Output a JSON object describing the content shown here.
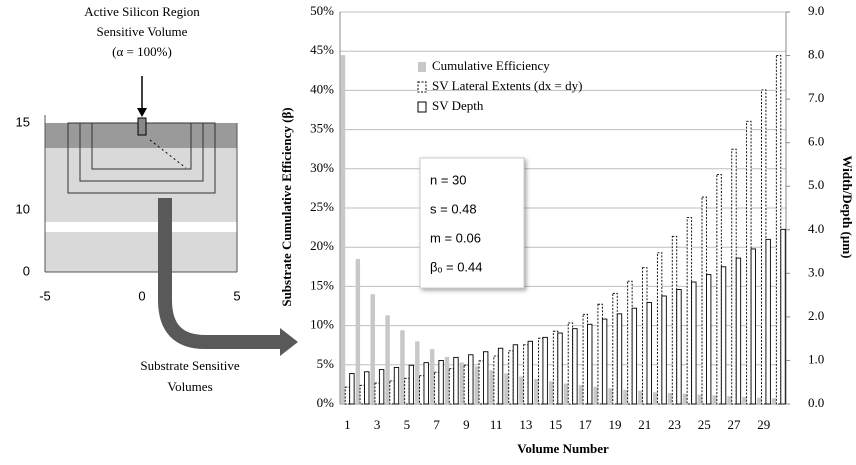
{
  "chart_data": {
    "type": "bar",
    "ylabel": "Substrate Cumulative Efficiency (β)",
    "y2label": "Width/Depth (µm)",
    "xlabel": "Volume Number",
    "categories": [
      1,
      null,
      3,
      null,
      5,
      null,
      7,
      null,
      9,
      null,
      11,
      null,
      13,
      null,
      15,
      null,
      17,
      null,
      19,
      null,
      21,
      null,
      23,
      null,
      25,
      null,
      27,
      null,
      29,
      null
    ],
    "ylim": [
      0,
      50
    ],
    "yticks": [
      {
        "value": 0,
        "label": "0%"
      },
      {
        "value": 5,
        "label": "5%"
      },
      {
        "value": 10,
        "label": "10%"
      },
      {
        "value": 15,
        "label": "15%"
      },
      {
        "value": 20,
        "label": "20%"
      },
      {
        "value": 25,
        "label": "25%"
      },
      {
        "value": 30,
        "label": "30%"
      },
      {
        "value": 35,
        "label": "35%"
      },
      {
        "value": 40,
        "label": "40%"
      },
      {
        "value": 45,
        "label": "45%"
      },
      {
        "value": 50,
        "label": "50%"
      }
    ],
    "y2lim": [
      0,
      9
    ],
    "y2ticks": [
      {
        "value": 0,
        "label": "0.0"
      },
      {
        "value": 1,
        "label": "1.0"
      },
      {
        "value": 2,
        "label": "2.0"
      },
      {
        "value": 3,
        "label": "3.0"
      },
      {
        "value": 4,
        "label": "4.0"
      },
      {
        "value": 5,
        "label": "5.0"
      },
      {
        "value": 6,
        "label": "6.0"
      },
      {
        "value": 7,
        "label": "7.0"
      },
      {
        "value": 8,
        "label": "8.0"
      },
      {
        "value": 9,
        "label": "9.0"
      }
    ],
    "grid": true,
    "series": [
      {
        "name": "Cumulative Efficiency",
        "color": "#c8c8c8",
        "line_style": "none",
        "values": [
          44.5,
          18.5,
          14,
          11.3,
          9.4,
          8,
          7,
          6,
          5.3,
          4.8,
          4.3,
          3.9,
          3.5,
          3.2,
          2.9,
          2.6,
          2.4,
          2.2,
          2,
          1.8,
          1.7,
          1.5,
          1.4,
          1.3,
          1.2,
          1.1,
          1,
          0.9,
          0.8,
          0.75
        ]
      },
      {
        "name": "SV Lateral Extents (dx = dy)",
        "color": "#ffffff",
        "line_style": "dashed",
        "axis": "y2",
        "values": [
          0.39,
          0.43,
          0.48,
          0.53,
          0.59,
          0.65,
          0.73,
          0.81,
          0.89,
          0.99,
          1.1,
          1.22,
          1.36,
          1.51,
          1.67,
          1.86,
          2.06,
          2.29,
          2.54,
          2.82,
          3.13,
          3.47,
          3.85,
          4.28,
          4.75,
          5.27,
          5.85,
          6.49,
          7.21,
          8.0
        ]
      },
      {
        "name": "SV Depth",
        "color": "#ffffff",
        "line_style": "solid",
        "axis": "y2",
        "values": [
          0.7,
          0.74,
          0.79,
          0.84,
          0.89,
          0.95,
          1.0,
          1.07,
          1.13,
          1.2,
          1.28,
          1.36,
          1.44,
          1.53,
          1.63,
          1.73,
          1.83,
          1.95,
          2.07,
          2.2,
          2.33,
          2.48,
          2.63,
          2.8,
          2.97,
          3.15,
          3.35,
          3.56,
          3.78,
          4.01
        ]
      }
    ],
    "annotations": [
      "n  = 30",
      "s  = 0.48",
      "m = 0.06",
      "βₒ = 0.44"
    ]
  },
  "diagram": {
    "top_label": [
      "Active Silicon Region",
      "Sensitive Volume",
      "(α = 100%)"
    ],
    "bottom_label": [
      "Substrate Sensitive",
      "Volumes"
    ],
    "yticks": [
      "15",
      "10",
      "0"
    ],
    "xticks": [
      "-5",
      "0",
      "5"
    ]
  }
}
